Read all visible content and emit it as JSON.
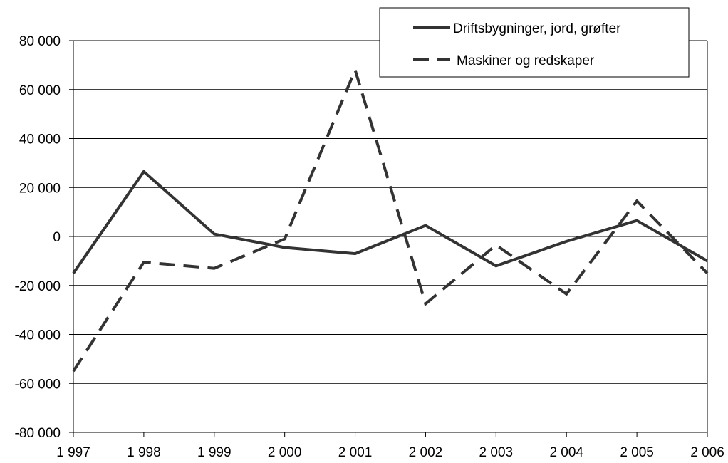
{
  "chart_data": {
    "type": "line",
    "x": [
      "1 997",
      "1 998",
      "1 999",
      "2 000",
      "2 001",
      "2 002",
      "2 003",
      "2 004",
      "2 005",
      "2 006"
    ],
    "ylim": [
      -80000,
      80000
    ],
    "y_ticks": [
      "80 000",
      "60 000",
      "40 000",
      "20 000",
      "0",
      "-20 000",
      "-40 000",
      "-60 000",
      "-80 000"
    ],
    "y_tick_values": [
      80000,
      60000,
      40000,
      20000,
      0,
      -20000,
      -40000,
      -60000,
      -80000
    ],
    "grid": true,
    "legend_position": "top-right",
    "series": [
      {
        "name": "Driftsbygninger, jord, grøfter",
        "style": "solid",
        "color": "#333333",
        "values": [
          -15000,
          26500,
          1000,
          -4500,
          -7000,
          4500,
          -12000,
          -2000,
          6500,
          -10000
        ]
      },
      {
        "name": "Maskiner og redskaper",
        "style": "dashed",
        "color": "#333333",
        "values": [
          -55000,
          -10500,
          -13000,
          -1000,
          68000,
          -27500,
          -3500,
          -23500,
          14500,
          -15000
        ]
      }
    ]
  }
}
